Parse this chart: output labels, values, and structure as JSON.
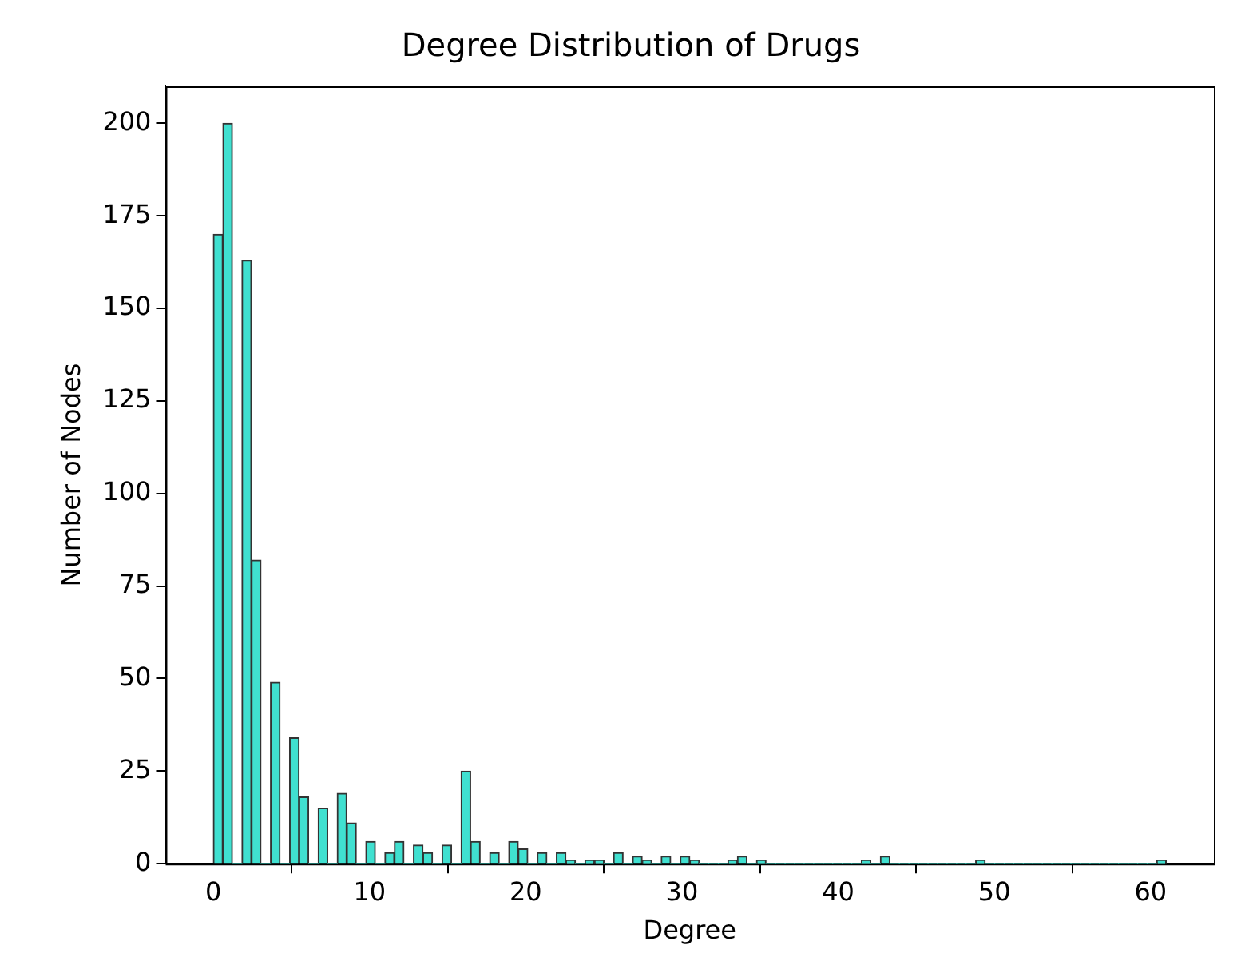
{
  "chart_data": {
    "type": "histogram",
    "title": "Degree Distribution of Drugs",
    "xlabel": "Degree",
    "ylabel": "Number of Nodes",
    "color": "#40e0d0",
    "bins": [
      0,
      0.61,
      1.22,
      1.83,
      2.44,
      3.05,
      3.66,
      4.27,
      4.88,
      5.49,
      6.1,
      6.71,
      7.32,
      7.93,
      8.54,
      9.15,
      9.76,
      10.37,
      10.98,
      11.59,
      12.2,
      12.81,
      13.42,
      14.03,
      14.64,
      15.25,
      15.86,
      16.47,
      17.08,
      17.69,
      18.3,
      18.91,
      19.52,
      20.13,
      20.74,
      21.35,
      21.96,
      22.57,
      23.18,
      23.79,
      24.4,
      25.01,
      25.62,
      26.23,
      26.84,
      27.45,
      28.06,
      28.67,
      29.28,
      29.89,
      30.5,
      31.11,
      31.72,
      32.33,
      32.94,
      33.55,
      34.16,
      34.77,
      35.38,
      35.99,
      36.6,
      37.21,
      37.82,
      38.43,
      39.04,
      39.65,
      40.26,
      40.87,
      41.48,
      42.09,
      42.7,
      43.31,
      43.92,
      44.53,
      45.14,
      45.75,
      46.36,
      46.97,
      47.58,
      48.19,
      48.8,
      49.41,
      50.02,
      50.63,
      51.24,
      51.85,
      52.46,
      53.07,
      53.68,
      54.29,
      54.9,
      55.51,
      56.12,
      56.73,
      57.34,
      57.95,
      58.56,
      59.17,
      59.78,
      60.39,
      61
    ],
    "values": [
      170,
      200,
      0,
      163,
      82,
      0,
      49,
      0,
      34,
      18,
      0,
      15,
      0,
      19,
      11,
      0,
      6,
      0,
      3,
      6,
      0,
      5,
      3,
      0,
      5,
      0,
      25,
      6,
      0,
      3,
      0,
      6,
      4,
      0,
      3,
      0,
      3,
      1,
      0,
      1,
      1,
      0,
      3,
      0,
      2,
      1,
      0,
      2,
      0,
      2,
      1,
      0,
      0,
      0,
      1,
      2,
      0,
      1,
      0,
      0,
      0,
      0,
      0,
      0,
      0,
      0,
      0,
      0,
      1,
      0,
      2,
      0,
      0,
      0,
      0,
      0,
      0,
      0,
      0,
      0,
      1,
      0,
      0,
      0,
      0,
      0,
      0,
      0,
      0,
      0,
      0,
      0,
      0,
      0,
      0,
      0,
      0,
      0,
      0,
      1
    ],
    "xlim": [
      -3.05,
      64.05
    ],
    "ylim": [
      0,
      210
    ],
    "xticks": [
      0,
      10,
      20,
      30,
      40,
      50,
      60
    ],
    "yticks": [
      0,
      25,
      50,
      75,
      100,
      125,
      150,
      175,
      200
    ]
  }
}
